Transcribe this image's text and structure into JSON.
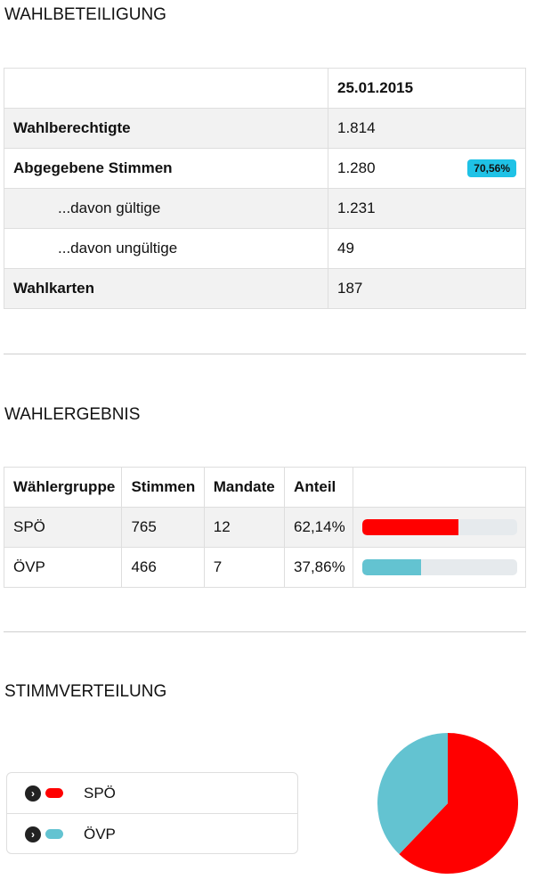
{
  "turnout": {
    "heading": "WAHLBETEILIGUNG",
    "date_header": "25.01.2015",
    "rows": [
      {
        "label": "Wahlberechtigte",
        "value": "1.814"
      },
      {
        "label": "Abgegebene Stimmen",
        "value": "1.280",
        "badge": "70,56%"
      },
      {
        "label": "...davon gültige",
        "value": "1.231"
      },
      {
        "label": "...davon ungültige",
        "value": "49"
      },
      {
        "label": "Wahlkarten",
        "value": "187"
      }
    ]
  },
  "result": {
    "heading": "WAHLERGEBNIS",
    "columns": [
      "Wählergruppe",
      "Stimmen",
      "Mandate",
      "Anteil"
    ],
    "rows": [
      {
        "party": "SPÖ",
        "votes": "765",
        "seats": "12",
        "share": "62,14%",
        "share_value": 62.14,
        "color": "#ff0000"
      },
      {
        "party": "ÖVP",
        "votes": "466",
        "seats": "7",
        "share": "37,86%",
        "share_value": 37.86,
        "color": "#63c3d1"
      }
    ]
  },
  "distribution": {
    "heading": "STIMMVERTEILUNG",
    "legend_icon": "chevron-right-icon",
    "legend": [
      {
        "label": "SPÖ",
        "color": "#ff0000"
      },
      {
        "label": "ÖVP",
        "color": "#63c3d1"
      }
    ]
  },
  "chart_data": {
    "type": "pie",
    "categories": [
      "SPÖ",
      "ÖVP"
    ],
    "values": [
      765,
      466
    ],
    "colors": [
      "#ff0000",
      "#63c3d1"
    ]
  }
}
